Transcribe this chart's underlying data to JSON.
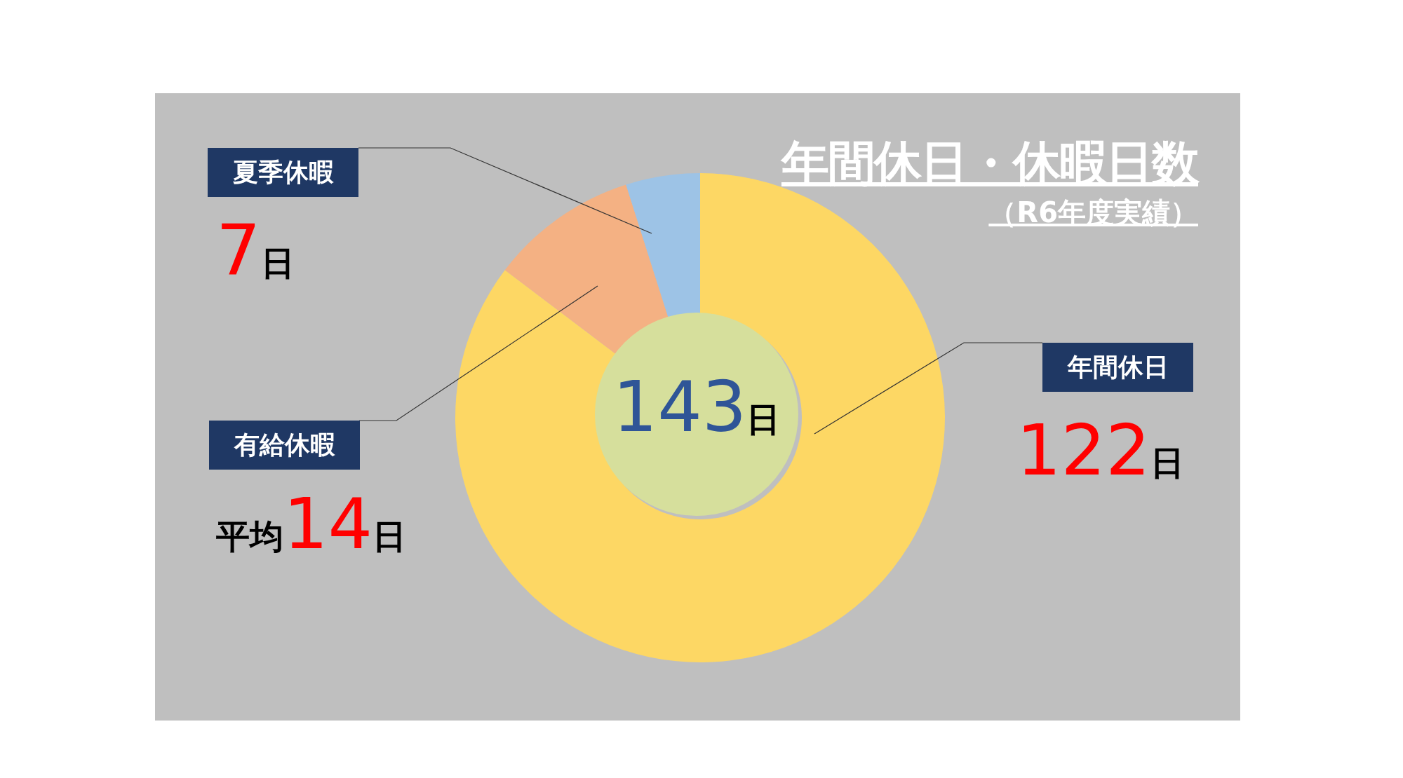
{
  "chart_data": {
    "type": "donut",
    "title": "年間休日・休暇日数",
    "subtitle": "（R6年度実績）",
    "categories": [
      "年間休日",
      "有給休暇",
      "夏季休暇"
    ],
    "values": [
      122,
      14,
      7
    ],
    "colors": [
      "#fdd764",
      "#f4b183",
      "#9dc3e6"
    ],
    "value_labels": [
      "122日",
      "平均14日",
      "7日"
    ],
    "annotations": [
      "143日"
    ]
  }
}
